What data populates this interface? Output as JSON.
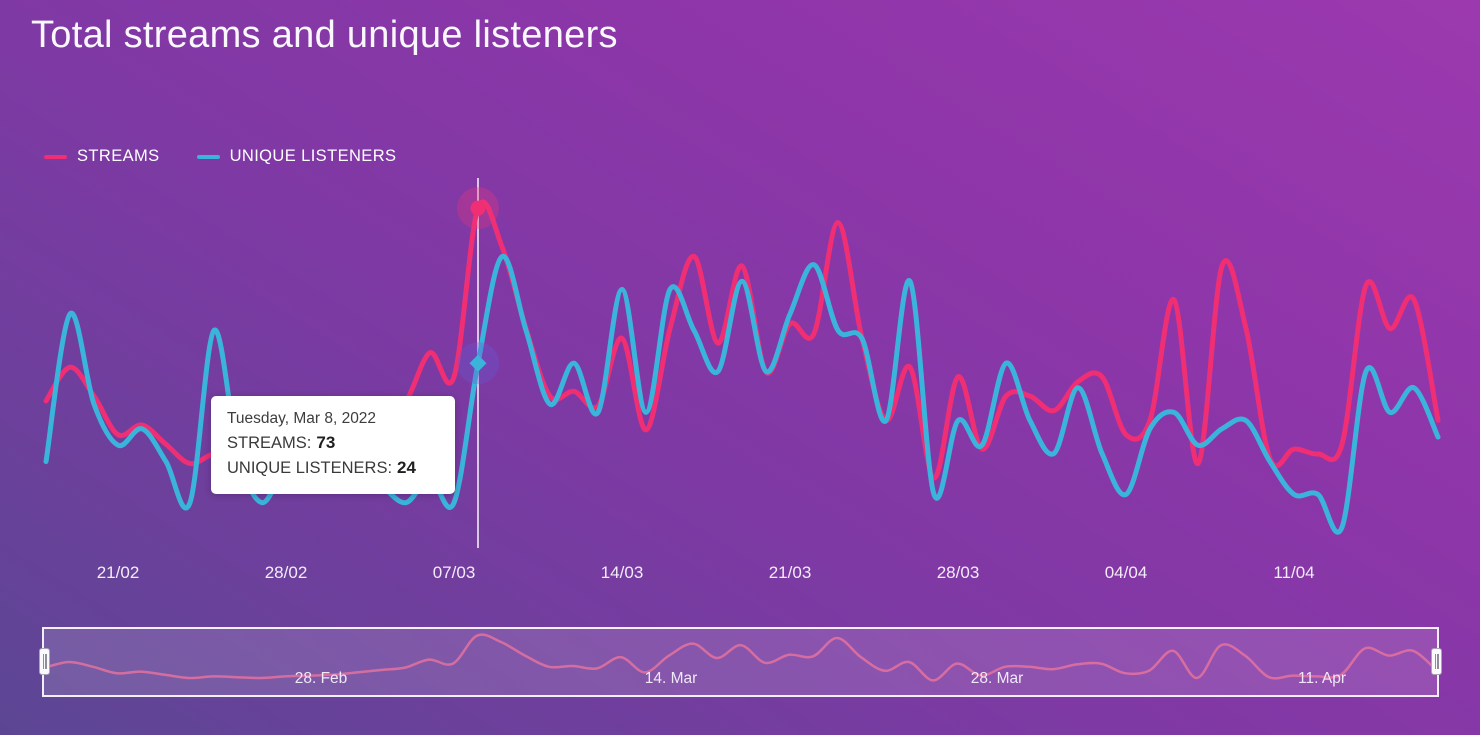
{
  "title": "Total streams and unique listeners",
  "legend": {
    "items": [
      {
        "label": "STREAMS",
        "color": "#ef2e74"
      },
      {
        "label": "UNIQUE LISTENERS",
        "color": "#3ab4da"
      }
    ],
    "position": "top-left"
  },
  "tooltip": {
    "date": "Tuesday, Mar 8, 2022",
    "rows": [
      {
        "label": "STREAMS:",
        "value": "73"
      },
      {
        "label": "UNIQUE LISTENERS:",
        "value": "24"
      }
    ]
  },
  "x_axis_labels": [
    "21/02",
    "28/02",
    "07/03",
    "14/03",
    "21/03",
    "28/03",
    "04/04",
    "11/04"
  ],
  "navigator": {
    "labels": [
      "28. Feb",
      "14. Mar",
      "28. Mar",
      "11. Apr"
    ],
    "handles": [
      "left",
      "right"
    ]
  },
  "colors": {
    "background_bottom_left": "#5c4694",
    "background_top_right": "#9c39af",
    "streams": "#ef2e74",
    "unique_listeners": "#3ab4da",
    "navigator_line": "#e4729f",
    "crosshair": "#ffffff",
    "streams_halo": "rgba(242,52,119,0.30)",
    "listeners_halo": "rgba(104,92,214,0.33)",
    "tooltip_background": "#ffffff",
    "tooltip_text": "#3a3a3a"
  },
  "chart_data": {
    "type": "line",
    "title": "Total streams and unique listeners",
    "xlabel": "",
    "ylabel": "",
    "y_axis_visible": false,
    "grid": false,
    "legend_position": "top-left",
    "x": [
      "2022-02-18",
      "2022-02-19",
      "2022-02-20",
      "2022-02-21",
      "2022-02-22",
      "2022-02-23",
      "2022-02-24",
      "2022-02-25",
      "2022-02-26",
      "2022-02-27",
      "2022-02-28",
      "2022-03-01",
      "2022-03-02",
      "2022-03-03",
      "2022-03-04",
      "2022-03-05",
      "2022-03-06",
      "2022-03-07",
      "2022-03-08",
      "2022-03-09",
      "2022-03-10",
      "2022-03-11",
      "2022-03-12",
      "2022-03-13",
      "2022-03-14",
      "2022-03-15",
      "2022-03-16",
      "2022-03-17",
      "2022-03-18",
      "2022-03-19",
      "2022-03-20",
      "2022-03-21",
      "2022-03-22",
      "2022-03-23",
      "2022-03-24",
      "2022-03-25",
      "2022-03-26",
      "2022-03-27",
      "2022-03-28",
      "2022-03-29",
      "2022-03-30",
      "2022-03-31",
      "2022-04-01",
      "2022-04-02",
      "2022-04-03",
      "2022-04-04",
      "2022-04-05",
      "2022-04-06",
      "2022-04-07",
      "2022-04-08",
      "2022-04-09",
      "2022-04-10",
      "2022-04-11",
      "2022-04-12",
      "2022-04-13",
      "2022-04-14",
      "2022-04-15",
      "2022-04-16",
      "2022-04-17"
    ],
    "x_tick_labels": [
      "21/02",
      "28/02",
      "07/03",
      "14/03",
      "21/03",
      "28/03",
      "04/04",
      "11/04"
    ],
    "series": [
      {
        "name": "STREAMS",
        "color": "#ef2e74",
        "axis_range": [
          0,
          80
        ],
        "values": [
          33,
          40,
          34,
          26,
          28,
          24,
          20,
          22,
          21,
          20,
          22,
          23,
          24,
          27,
          30,
          33,
          43,
          38,
          73,
          65,
          48,
          34,
          35,
          32,
          46,
          27,
          48,
          63,
          45,
          61,
          39,
          49,
          47,
          70,
          46,
          29,
          40,
          17,
          38,
          23,
          34,
          34,
          31,
          37,
          38,
          26,
          29,
          54,
          20,
          61,
          48,
          21,
          23,
          22,
          24,
          57,
          48,
          54,
          29
        ]
      },
      {
        "name": "UNIQUE LISTENERS",
        "color": "#3ab4da",
        "axis_range": [
          0,
          42
        ],
        "values": [
          12,
          30,
          19,
          14,
          16,
          12,
          7,
          28,
          13,
          7,
          12,
          16,
          13,
          11,
          9,
          7,
          10,
          7,
          24,
          37,
          28,
          19,
          24,
          18,
          33,
          18,
          33,
          28,
          23,
          34,
          23,
          30,
          36,
          28,
          27,
          17,
          34,
          8,
          17,
          14,
          24,
          17,
          13,
          21,
          13,
          8,
          16,
          18,
          14,
          16,
          17,
          12,
          8,
          8,
          4,
          23,
          18,
          21,
          15
        ]
      }
    ],
    "highlight": {
      "index": 18,
      "date": "2022-03-08",
      "date_label": "Tuesday, Mar 8, 2022",
      "STREAMS": 73,
      "UNIQUE LISTENERS": 24
    },
    "navigator_series": "STREAMS"
  }
}
